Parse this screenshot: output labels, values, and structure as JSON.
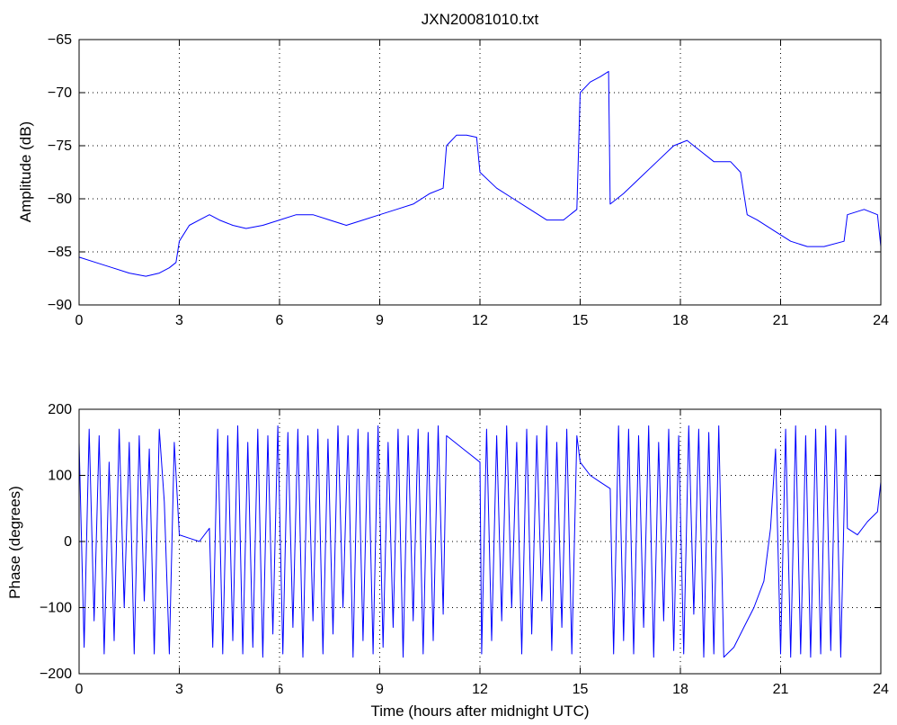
{
  "colors": {
    "series": "#0000ff",
    "axes": "#000000",
    "background": "#ffffff"
  },
  "chart_data": [
    {
      "type": "line",
      "title": "JXN20081010.txt",
      "xlabel": "",
      "ylabel": "Amplitude (dB)",
      "xlim": [
        0,
        24
      ],
      "ylim": [
        -90,
        -65
      ],
      "xticks": [
        0,
        3,
        6,
        9,
        12,
        15,
        18,
        21,
        24
      ],
      "yticks": [
        -65,
        -70,
        -75,
        -80,
        -85,
        -90
      ],
      "grid": true,
      "series": [
        {
          "x": [
            0,
            0.5,
            1.0,
            1.5,
            2.0,
            2.4,
            2.7,
            2.9,
            3.0,
            3.3,
            3.6,
            3.9,
            4.2,
            4.6,
            5.0,
            5.5,
            6.0,
            6.5,
            7.0,
            7.5,
            8.0,
            8.5,
            9.0,
            9.5,
            10.0,
            10.5,
            10.9,
            11.0,
            11.3,
            11.6,
            11.9,
            12.0,
            12.5,
            13.0,
            13.5,
            14.0,
            14.5,
            14.9,
            15.0,
            15.3,
            15.6,
            15.85,
            15.9,
            16.3,
            16.8,
            17.3,
            17.8,
            18.2,
            18.6,
            19.0,
            19.5,
            19.8,
            20.0,
            20.3,
            20.8,
            21.3,
            21.8,
            22.3,
            22.9,
            23.0,
            23.5,
            23.9,
            24.0
          ],
          "values": [
            -85.5,
            -86.0,
            -86.5,
            -87.0,
            -87.3,
            -87.0,
            -86.5,
            -86.0,
            -84.0,
            -82.5,
            -82.0,
            -81.5,
            -82.0,
            -82.5,
            -82.8,
            -82.5,
            -82.0,
            -81.5,
            -81.5,
            -82.0,
            -82.5,
            -82.0,
            -81.5,
            -81.0,
            -80.5,
            -79.5,
            -79.0,
            -75.0,
            -74.0,
            -74.0,
            -74.2,
            -77.5,
            -79.0,
            -80.0,
            -81.0,
            -82.0,
            -82.0,
            -81.0,
            -70.0,
            -69.0,
            -68.5,
            -68.0,
            -80.5,
            -79.5,
            -78.0,
            -76.5,
            -75.0,
            -74.5,
            -75.5,
            -76.5,
            -76.5,
            -77.5,
            -81.5,
            -82.0,
            -83.0,
            -84.0,
            -84.5,
            -84.5,
            -84.0,
            -81.5,
            -81.0,
            -81.5,
            -84.5
          ]
        }
      ]
    },
    {
      "type": "line",
      "title": "",
      "xlabel": "Time (hours after midnight UTC)",
      "ylabel": "Phase (degrees)",
      "xlim": [
        0,
        24
      ],
      "ylim": [
        -200,
        200
      ],
      "xticks": [
        0,
        3,
        6,
        9,
        12,
        15,
        18,
        21,
        24
      ],
      "yticks": [
        200,
        100,
        0,
        -100,
        -200
      ],
      "grid": true,
      "series": [
        {
          "x": [
            0,
            0.15,
            0.3,
            0.45,
            0.6,
            0.75,
            0.9,
            1.05,
            1.2,
            1.35,
            1.5,
            1.65,
            1.8,
            1.95,
            2.1,
            2.25,
            2.4,
            2.55,
            2.7,
            2.85,
            3.0,
            3.3,
            3.6,
            3.9,
            4.0,
            4.15,
            4.3,
            4.45,
            4.6,
            4.75,
            4.9,
            5.05,
            5.2,
            5.35,
            5.5,
            5.65,
            5.8,
            5.95,
            6.1,
            6.25,
            6.4,
            6.55,
            6.7,
            6.85,
            7.0,
            7.15,
            7.3,
            7.45,
            7.6,
            7.75,
            7.9,
            8.05,
            8.2,
            8.35,
            8.5,
            8.65,
            8.8,
            8.95,
            9.1,
            9.25,
            9.4,
            9.55,
            9.7,
            9.85,
            10.0,
            10.15,
            10.3,
            10.45,
            10.6,
            10.75,
            10.9,
            11.0,
            11.5,
            12.0,
            12.05,
            12.2,
            12.35,
            12.5,
            12.65,
            12.8,
            12.95,
            13.1,
            13.25,
            13.4,
            13.55,
            13.7,
            13.85,
            14.0,
            14.15,
            14.3,
            14.45,
            14.6,
            14.75,
            14.9,
            15.0,
            15.3,
            15.6,
            15.9,
            16.0,
            16.15,
            16.3,
            16.45,
            16.6,
            16.75,
            16.9,
            17.05,
            17.2,
            17.35,
            17.5,
            17.65,
            17.8,
            17.95,
            18.1,
            18.25,
            18.4,
            18.55,
            18.7,
            18.85,
            19.0,
            19.15,
            19.3,
            19.6,
            19.9,
            20.2,
            20.5,
            20.7,
            20.85,
            21.0,
            21.15,
            21.3,
            21.45,
            21.6,
            21.75,
            21.9,
            22.05,
            22.2,
            22.35,
            22.5,
            22.65,
            22.8,
            22.95,
            23.0,
            23.3,
            23.6,
            23.9,
            24.0
          ],
          "values": [
            150,
            -160,
            170,
            -120,
            160,
            -170,
            120,
            -150,
            170,
            -100,
            150,
            -170,
            160,
            -90,
            140,
            -170,
            170,
            60,
            -170,
            150,
            10,
            5,
            0,
            20,
            -160,
            170,
            -170,
            160,
            -150,
            175,
            -170,
            150,
            -160,
            170,
            -175,
            160,
            -140,
            175,
            -170,
            165,
            -130,
            170,
            -175,
            160,
            -120,
            170,
            -170,
            155,
            -140,
            175,
            -100,
            160,
            -175,
            170,
            -150,
            165,
            -170,
            175,
            -160,
            150,
            -130,
            170,
            -175,
            160,
            -120,
            170,
            -170,
            165,
            -150,
            175,
            -110,
            160,
            140,
            120,
            -170,
            170,
            -150,
            160,
            -120,
            175,
            -100,
            150,
            -170,
            170,
            -140,
            160,
            -90,
            175,
            -165,
            150,
            -130,
            170,
            -170,
            160,
            120,
            100,
            90,
            80,
            -170,
            175,
            -150,
            170,
            -170,
            160,
            -130,
            175,
            -175,
            150,
            -120,
            170,
            -165,
            160,
            -170,
            175,
            -110,
            170,
            -175,
            165,
            -170,
            175,
            -175,
            -160,
            -130,
            -100,
            -60,
            20,
            140,
            -170,
            170,
            -175,
            175,
            -170,
            160,
            -175,
            170,
            -170,
            175,
            -165,
            170,
            -175,
            160,
            20,
            10,
            30,
            45,
            90
          ]
        }
      ]
    }
  ]
}
